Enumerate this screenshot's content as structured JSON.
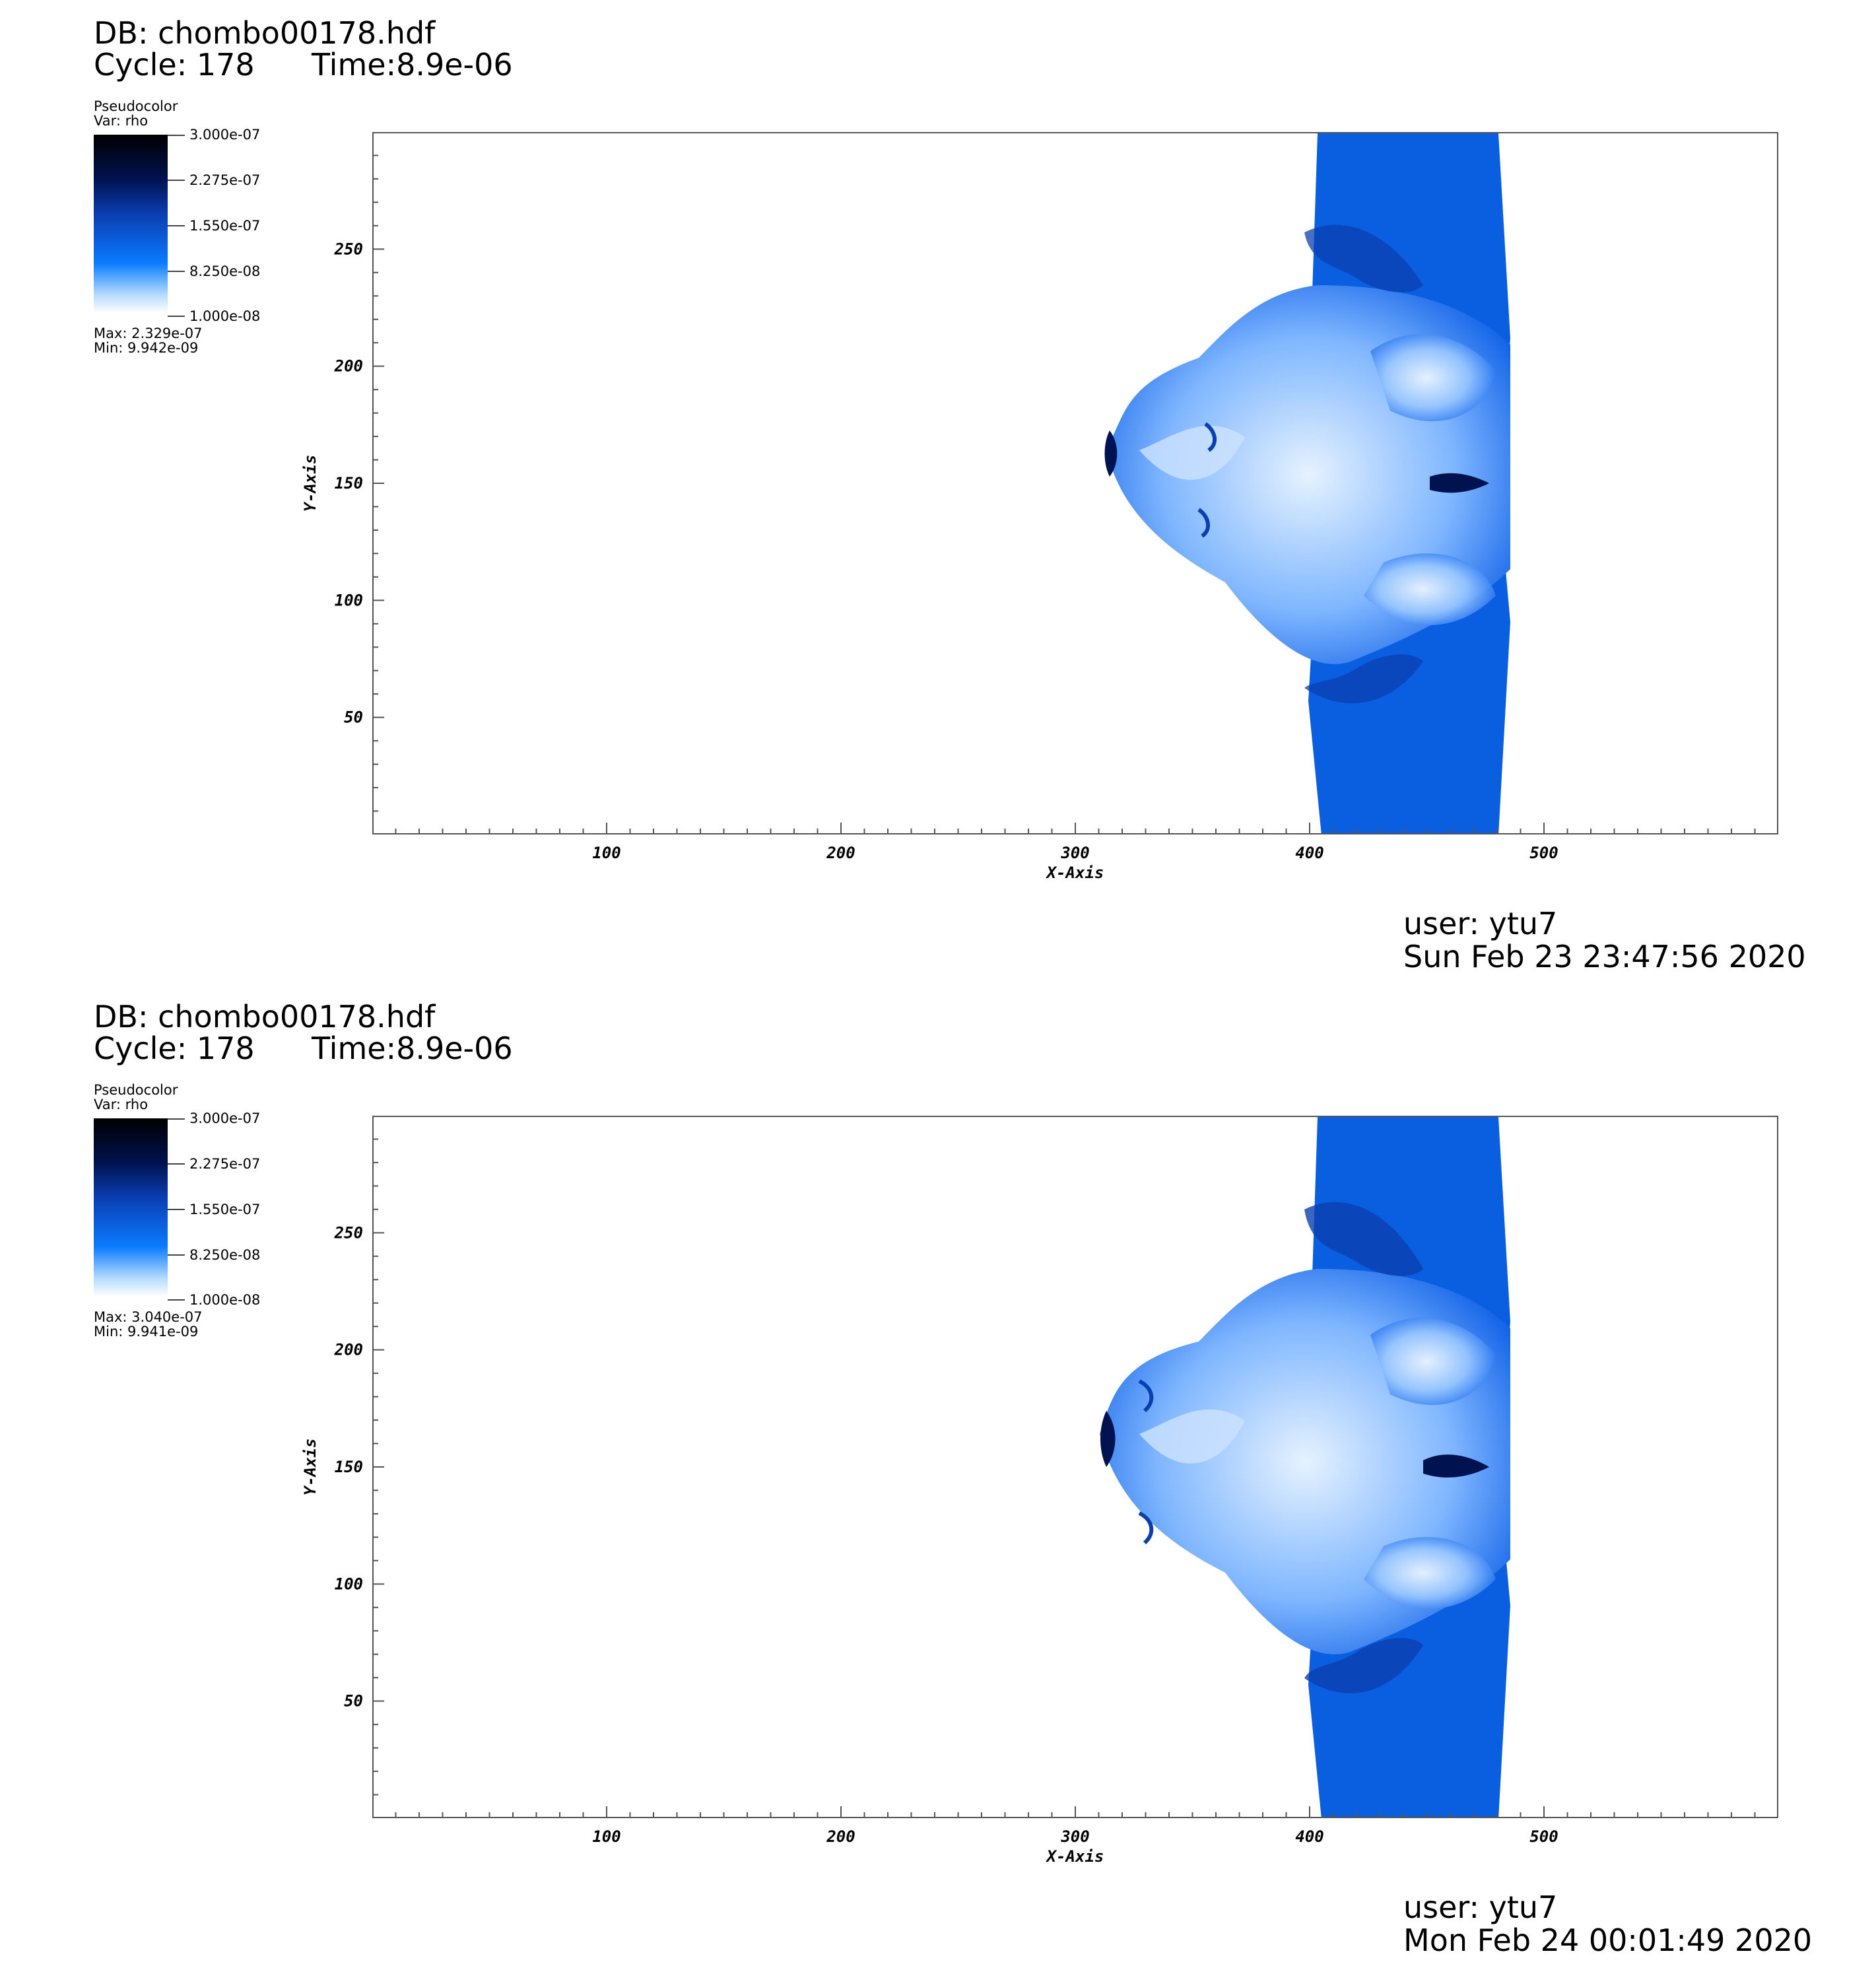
{
  "panels": [
    {
      "db": "DB: chombo00178.hdf",
      "cycle": "Cycle: 178",
      "time": "Time:8.9e-06",
      "legend": {
        "title": "Pseudocolor",
        "var": "Var: rho",
        "ticks": [
          "3.000e-07",
          "2.275e-07",
          "1.550e-07",
          "8.250e-08",
          "1.000e-08"
        ],
        "max": "Max:  2.329e-07",
        "min": "Min:  9.942e-09"
      },
      "user": "user: ytu7",
      "date": "Sun Feb 23 23:47:56 2020"
    },
    {
      "db": "DB: chombo00178.hdf",
      "cycle": "Cycle: 178",
      "time": "Time:8.9e-06",
      "legend": {
        "title": "Pseudocolor",
        "var": "Var: rho",
        "ticks": [
          "3.000e-07",
          "2.275e-07",
          "1.550e-07",
          "8.250e-08",
          "1.000e-08"
        ],
        "max": "Max:  3.040e-07",
        "min": "Min:  9.941e-09"
      },
      "user": "user: ytu7",
      "date": "Mon Feb 24 00:01:49 2020"
    }
  ],
  "colors": {
    "field_dark": "#00124f",
    "field_mid": "#0a5fe0",
    "field_light": "#cfe6ff",
    "background": "#ffffff"
  },
  "chart_data": [
    {
      "type": "heatmap",
      "xlabel": "X-Axis",
      "ylabel": "Y-Axis",
      "xlim": [
        0,
        600
      ],
      "ylim": [
        0,
        300
      ],
      "xticks": [
        100,
        200,
        300,
        400,
        500
      ],
      "yticks": [
        50,
        100,
        150,
        200,
        250
      ],
      "colorbar_range": [
        1e-08,
        3e-07
      ],
      "value_range": [
        9.942e-09,
        2.329e-07
      ]
    },
    {
      "type": "heatmap",
      "xlabel": "X-Axis",
      "ylabel": "Y-Axis",
      "xlim": [
        0,
        600
      ],
      "ylim": [
        0,
        300
      ],
      "xticks": [
        100,
        200,
        300,
        400,
        500
      ],
      "yticks": [
        50,
        100,
        150,
        200,
        250
      ],
      "colorbar_range": [
        1e-08,
        3e-07
      ],
      "value_range": [
        9.941e-09,
        3.04e-07
      ]
    }
  ]
}
